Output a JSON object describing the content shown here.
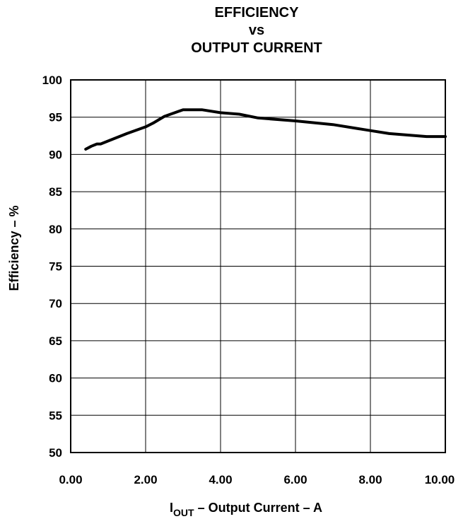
{
  "chart_data": {
    "type": "line",
    "title_lines": [
      "EFFICIENCY",
      "vs",
      "OUTPUT CURRENT"
    ],
    "xlabel": {
      "symbol": "I",
      "subscript": "OUT",
      "text": " – Output Current – A"
    },
    "ylabel": "Efficiency – %",
    "xlim": [
      0,
      10
    ],
    "ylim": [
      50,
      100
    ],
    "xticks": [
      "0.00",
      "2.00",
      "4.00",
      "6.00",
      "8.00",
      "10.00"
    ],
    "yticks": [
      "50",
      "55",
      "60",
      "65",
      "70",
      "75",
      "80",
      "85",
      "90",
      "95",
      "100"
    ],
    "grid": true,
    "series": [
      {
        "x": [
          0.4,
          0.55,
          0.7,
          0.8,
          1.0,
          1.5,
          2.0,
          2.2,
          2.5,
          3.0,
          3.5,
          4.0,
          4.5,
          5.0,
          6.0,
          7.0,
          8.0,
          8.5,
          9.0,
          9.5,
          10.0
        ],
        "y": [
          90.7,
          91.1,
          91.4,
          91.4,
          91.8,
          92.8,
          93.7,
          94.2,
          95.1,
          96.0,
          96.0,
          95.6,
          95.4,
          94.9,
          94.5,
          94.0,
          93.2,
          92.8,
          92.6,
          92.4,
          92.4
        ]
      }
    ],
    "line_color": "#000000"
  }
}
